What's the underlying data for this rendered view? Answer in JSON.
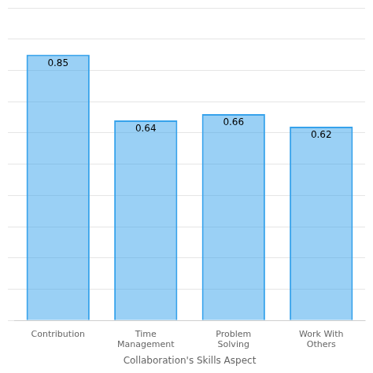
{
  "chart_data": {
    "type": "bar",
    "x_label": "Collaboration's Skills Aspect",
    "categories": [
      "Contribution",
      "Time\nManagement",
      "Problem\nSolving",
      "Work With\nOthers"
    ],
    "values": [
      0.85,
      0.64,
      0.66,
      0.62
    ],
    "ylim": [
      0,
      1.0
    ],
    "yticks": [
      0.0,
      0.1,
      0.2,
      0.3,
      0.4,
      0.5,
      0.6,
      0.7,
      0.8,
      0.9,
      1.0
    ],
    "grid": true,
    "data_labels": true,
    "tick_labels": "x"
  }
}
